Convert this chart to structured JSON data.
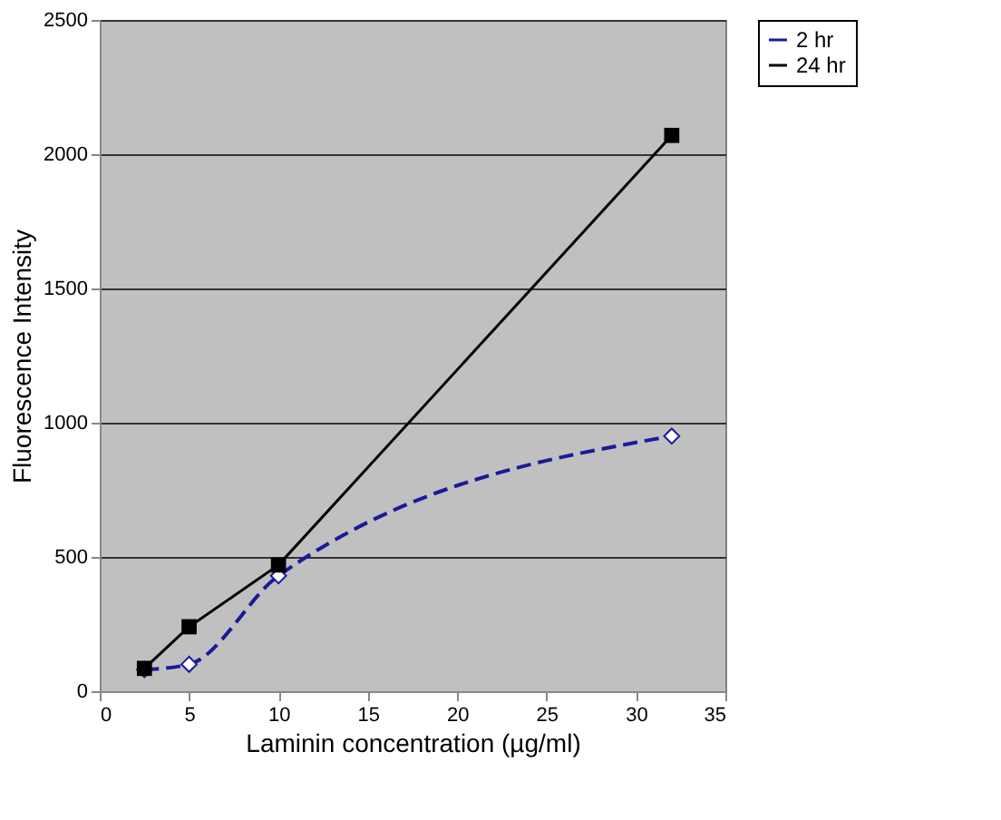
{
  "chart_data": {
    "type": "line",
    "xlabel": "Laminin concentration (µg/ml)",
    "ylabel": "Fluorescence Intensity",
    "xlim": [
      0,
      35
    ],
    "xticks": [
      0,
      5,
      10,
      15,
      20,
      25,
      30,
      35
    ],
    "ylim": [
      0,
      2500
    ],
    "yticks": [
      0,
      500,
      1000,
      1500,
      2000,
      2500
    ],
    "grid": "y",
    "legend": "right",
    "series": [
      {
        "name": "2 hr",
        "color": "#1a1a9a",
        "x": [
          2.5,
          5,
          10,
          32
        ],
        "values": [
          80,
          100,
          430,
          950
        ],
        "marker": "diamond",
        "line_style": "dashed"
      },
      {
        "name": "24 hr",
        "color": "#000000",
        "x": [
          2.5,
          5,
          10,
          32
        ],
        "values": [
          85,
          240,
          470,
          2070
        ],
        "marker": "square",
        "line_style": "solid"
      }
    ]
  }
}
